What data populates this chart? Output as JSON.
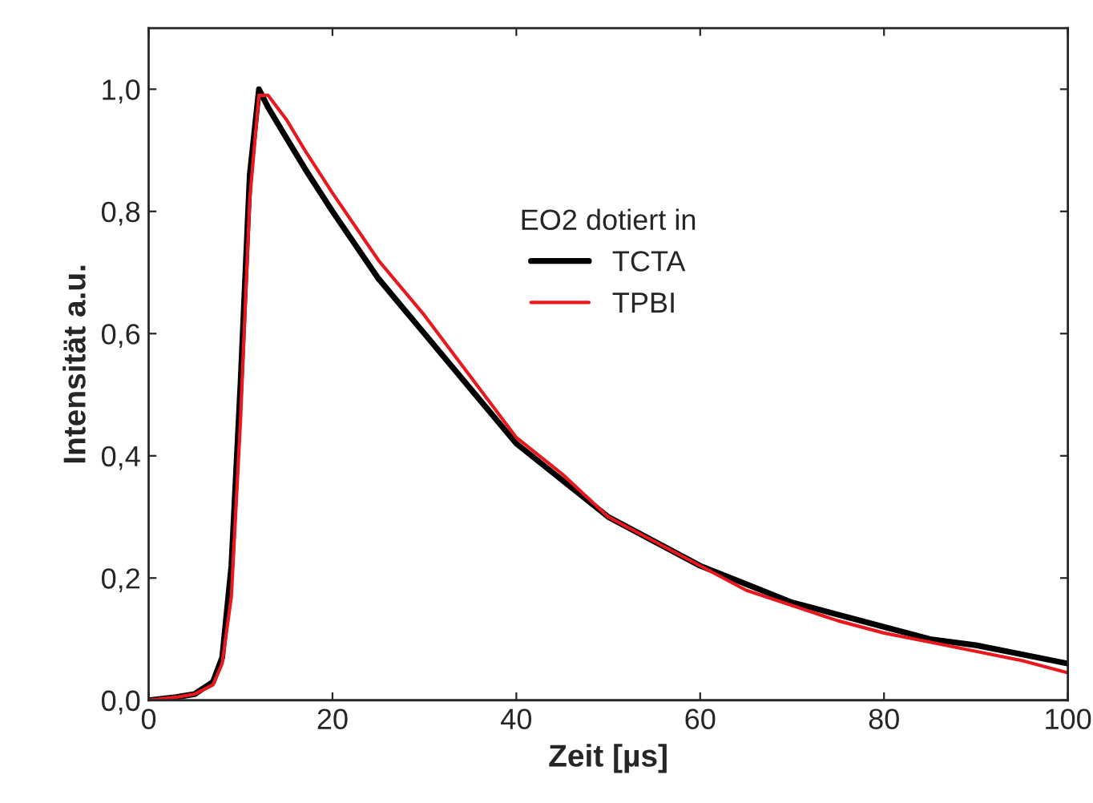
{
  "chart_data": {
    "type": "line",
    "xlabel": "Zeit [µs]",
    "ylabel": "Intensität a.u.",
    "legend_title": "EO2 dotiert in",
    "legend": "top",
    "grid": false,
    "xlim": [
      0,
      100
    ],
    "xticks": [
      0,
      20,
      40,
      60,
      80,
      100
    ],
    "ylim": [
      0,
      1.1
    ],
    "yticks": [
      {
        "value": 0,
        "label": "0,0"
      },
      {
        "value": 0.2,
        "label": "0,2"
      },
      {
        "value": 0.4,
        "label": "0,4"
      },
      {
        "value": 0.6,
        "label": "0,6"
      },
      {
        "value": 0.8,
        "label": "0,8"
      },
      {
        "value": 1.0,
        "label": "1,0"
      }
    ],
    "x": [
      0,
      3,
      5,
      7,
      8,
      9,
      10,
      11,
      12,
      13,
      15,
      17,
      20,
      25,
      30,
      35,
      40,
      45,
      50,
      55,
      60,
      65,
      70,
      75,
      80,
      85,
      90,
      95,
      100
    ],
    "series": [
      {
        "name": "TCTA",
        "color": "#000000",
        "values": [
          0,
          0.005,
          0.01,
          0.03,
          0.07,
          0.22,
          0.52,
          0.86,
          1.0,
          0.97,
          0.92,
          0.87,
          0.8,
          0.69,
          0.6,
          0.51,
          0.42,
          0.36,
          0.3,
          0.26,
          0.22,
          0.19,
          0.16,
          0.14,
          0.12,
          0.1,
          0.09,
          0.075,
          0.06
        ]
      },
      {
        "name": "TPBI",
        "color": "#e8191e",
        "values": [
          0,
          0.005,
          0.01,
          0.025,
          0.06,
          0.17,
          0.46,
          0.82,
          0.99,
          0.99,
          0.95,
          0.9,
          0.83,
          0.72,
          0.63,
          0.53,
          0.43,
          0.37,
          0.3,
          0.26,
          0.22,
          0.18,
          0.155,
          0.13,
          0.11,
          0.095,
          0.08,
          0.065,
          0.045
        ]
      }
    ]
  }
}
